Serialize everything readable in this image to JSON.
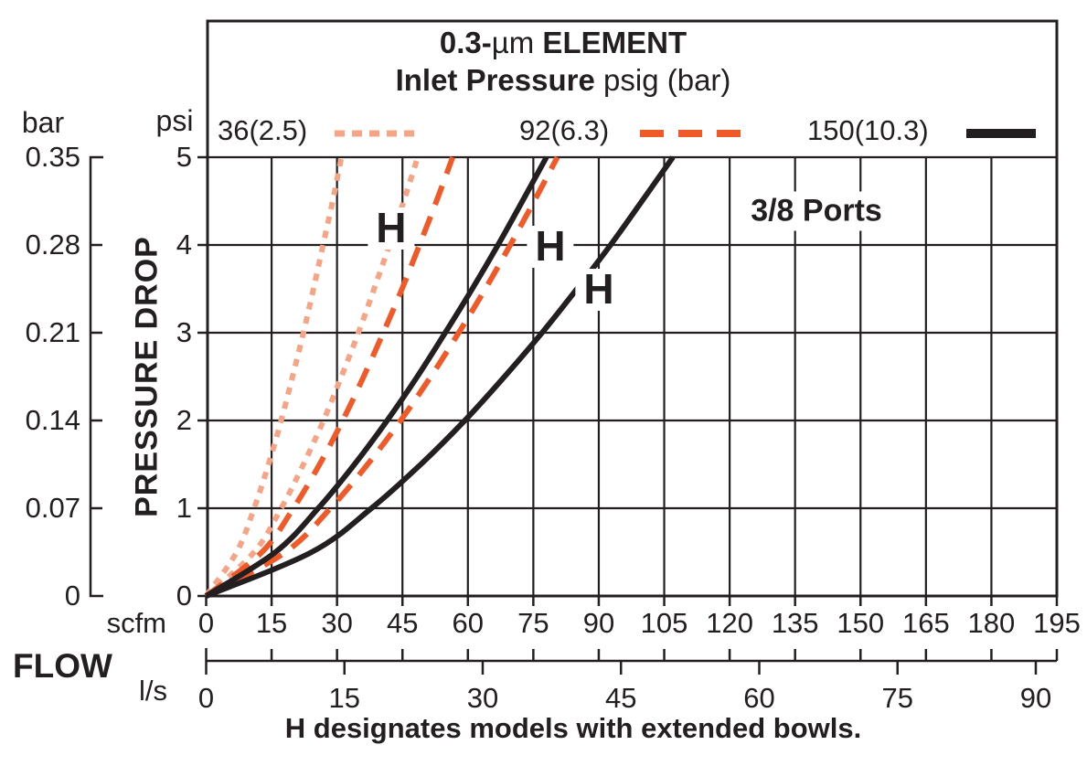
{
  "chart_data": {
    "type": "line",
    "title_line1": {
      "bold_left": "0.3-",
      "regular_mu": "µm",
      "bold_right": " ELEMENT"
    },
    "title_line2": {
      "bold": "Inlet Pressure",
      "regular": " psig (bar)"
    },
    "annotation_ports": "3/8 Ports",
    "caption": "H designates models with extended bowls.",
    "colors": {
      "black": "#231f20",
      "orange": "#f05a28",
      "salmon": "#f5a585"
    },
    "y_axis": {
      "left_unit": "bar",
      "right_unit": "psi",
      "label": "PRESSURE DROP",
      "bar_ticks": [
        "0.35",
        "0.28",
        "0.21",
        "0.14",
        "0.07",
        "0"
      ],
      "psi_ticks": [
        "5",
        "4",
        "3",
        "2",
        "1",
        "0"
      ],
      "psi_positions": [
        5,
        4,
        3,
        2,
        1,
        0
      ],
      "psi_range": [
        0,
        5
      ],
      "bar_range": [
        0,
        0.35
      ]
    },
    "x_axis": {
      "label": "FLOW",
      "scfm_unit": "scfm",
      "ls_unit": "l/s",
      "scfm_ticks": [
        0,
        15,
        30,
        45,
        60,
        75,
        90,
        105,
        120,
        135,
        150,
        165,
        180,
        195
      ],
      "ls_ticks": [
        0,
        15,
        30,
        45,
        60,
        75,
        90
      ],
      "scfm_range": [
        0,
        195
      ],
      "ls_range": [
        0,
        92
      ]
    },
    "legend": [
      {
        "label": "36(2.5)",
        "style": "dotted",
        "color": "#f5a585"
      },
      {
        "label": "92(6.3)",
        "style": "dashed",
        "color": "#f05a28"
      },
      {
        "label": "150(10.3)",
        "style": "solid",
        "color": "#231f20"
      }
    ],
    "psi_steps": [
      0,
      0.5,
      1,
      1.5,
      2,
      2.5,
      3,
      3.5,
      4,
      4.5,
      5
    ],
    "series": [
      {
        "name": "36 psig (2.5 bar) standard",
        "color": "#f5a585",
        "dash": "8 8",
        "width": 6,
        "scfm": [
          0,
          7.0,
          11.0,
          14.3,
          17.2,
          19.8,
          22.3,
          24.6,
          26.8,
          29.0,
          31.0
        ]
      },
      {
        "name": "36 psig (2.5 bar) H extended bowl",
        "color": "#f5a585",
        "dash": "8 8",
        "width": 6,
        "scfm": [
          0,
          11.0,
          17.2,
          22.3,
          26.9,
          31.0,
          34.9,
          38.5,
          42.0,
          45.3,
          48.5
        ]
      },
      {
        "name": "92 psig (6.3 bar) standard",
        "color": "#f05a28",
        "dash": "22 14",
        "width": 6,
        "scfm": [
          0,
          12.8,
          20.0,
          26.0,
          31.3,
          36.1,
          40.6,
          44.9,
          48.9,
          52.8,
          56.5
        ]
      },
      {
        "name": "92 psig (6.3 bar) H extended bowl",
        "color": "#f05a28",
        "dash": "22 14",
        "width": 6,
        "scfm": [
          0,
          18.2,
          28.5,
          37.0,
          44.6,
          51.5,
          57.9,
          64.0,
          69.7,
          75.2,
          80.5
        ]
      },
      {
        "name": "150 psig (10.3 bar) standard",
        "color": "#231f20",
        "dash": "",
        "width": 6,
        "scfm": [
          0,
          15.9,
          25.7,
          34.0,
          41.5,
          48.4,
          54.8,
          61.0,
          66.9,
          72.5,
          78.0
        ]
      },
      {
        "name": "150 psig (10.3 bar) H extended bowl",
        "color": "#231f20",
        "dash": "",
        "width": 6,
        "scfm": [
          0,
          24.2,
          37.9,
          49.2,
          59.3,
          68.4,
          77.0,
          85.0,
          92.7,
          99.9,
          107.0
        ]
      }
    ],
    "h_labels": [
      {
        "text": "H",
        "scfm": 42.4,
        "psi": 4.19
      },
      {
        "text": "H",
        "scfm": 78.9,
        "psi": 3.98
      },
      {
        "text": "H",
        "scfm": 90.0,
        "psi": 3.49
      }
    ]
  }
}
